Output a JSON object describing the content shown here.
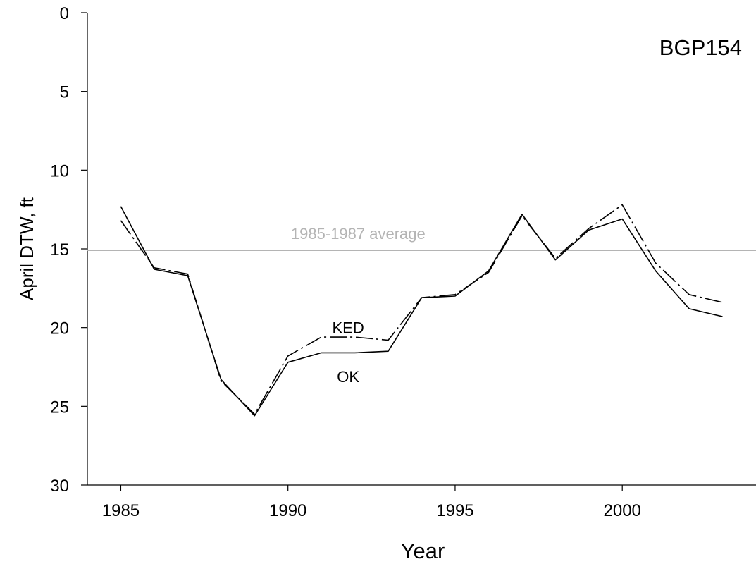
{
  "chart_data": {
    "type": "line",
    "title": "BGP154",
    "xlabel": "Year",
    "ylabel": "April DTW, ft",
    "xlim": [
      1984,
      2004
    ],
    "ylim": [
      0,
      30
    ],
    "y_inverted": true,
    "x_ticks": [
      1985,
      1990,
      1995,
      2000
    ],
    "y_ticks": [
      0,
      5,
      10,
      15,
      20,
      25,
      30
    ],
    "x": [
      1985,
      1986,
      1987,
      1988,
      1989,
      1990,
      1991,
      1992,
      1993,
      1994,
      1995,
      1996,
      1997,
      1998,
      1999,
      2000,
      2001,
      2002,
      2003
    ],
    "series": [
      {
        "name": "OK",
        "style": "solid",
        "color": "#000000",
        "values": [
          12.3,
          16.3,
          16.7,
          23.3,
          25.6,
          22.2,
          21.6,
          21.6,
          21.5,
          18.1,
          18.0,
          16.4,
          12.8,
          15.7,
          13.8,
          13.1,
          16.4,
          18.8,
          19.3
        ]
      },
      {
        "name": "KED",
        "style": "dashed",
        "color": "#000000",
        "values": [
          13.2,
          16.2,
          16.6,
          23.4,
          25.5,
          21.8,
          20.6,
          20.6,
          20.8,
          18.1,
          17.9,
          16.5,
          12.9,
          15.6,
          13.7,
          12.2,
          15.9,
          17.9,
          18.4
        ]
      }
    ],
    "reference_line": {
      "label": "1985-1987 average",
      "value": 15.1,
      "color": "#b4b4b4"
    },
    "annotations": [
      {
        "text": "KED",
        "x": 1991.8,
        "y": 20.0
      },
      {
        "text": "OK",
        "x": 1991.8,
        "y": 23.1
      }
    ],
    "grid": false,
    "legend": "none"
  }
}
